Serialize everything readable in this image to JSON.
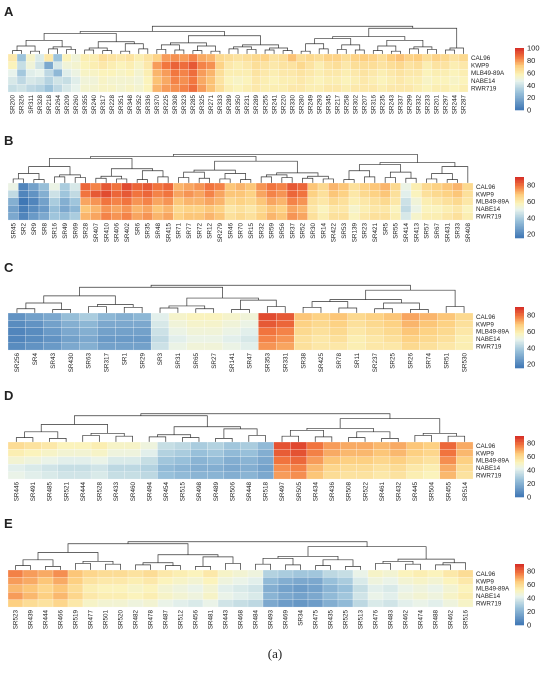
{
  "caption": "(a)",
  "palette": {
    "low": "#3b73b3",
    "mid": "#fbf7c5",
    "mid2": "#fde59a",
    "high": "#d73027",
    "midlow": "#e4f0f5"
  },
  "chart_data": [
    {
      "type": "heatmap",
      "panel": "A",
      "rows": [
        "CAL96",
        "KWP9",
        "MLB49-89A",
        "NABE14",
        "RWR719"
      ],
      "columns": [
        "SR200",
        "SR326",
        "SR311",
        "SR328",
        "SR218",
        "SR264",
        "SR209",
        "SR260",
        "SR355",
        "SR240",
        "SR317",
        "SR228",
        "SR351",
        "SR348",
        "SR352",
        "SR336",
        "SR370",
        "SR225",
        "SR308",
        "SR323",
        "SR285",
        "SR325",
        "SR271",
        "SR333",
        "SR289",
        "SR350",
        "SR231",
        "SR289",
        "SR255",
        "SR241",
        "SR220",
        "SR330",
        "SR280",
        "SR249",
        "SR293",
        "SR345",
        "SR217",
        "SR258",
        "SR302",
        "SR207",
        "SR316",
        "SR235",
        "SR243",
        "SR337",
        "SR299",
        "SR332",
        "SR233",
        "SR201",
        "SR297",
        "SR244",
        "SR287"
      ],
      "values": [
        [
          62,
          30,
          55,
          45,
          62,
          30,
          58,
          52,
          60,
          60,
          66,
          64,
          62,
          64,
          60,
          64,
          70,
          80,
          82,
          80,
          84,
          78,
          76,
          68,
          66,
          64,
          66,
          68,
          70,
          64,
          66,
          74,
          66,
          68,
          66,
          70,
          70,
          66,
          70,
          72,
          70,
          66,
          72,
          74,
          70,
          72,
          66,
          70,
          68,
          64,
          68
        ],
        [
          58,
          40,
          52,
          42,
          20,
          44,
          52,
          54,
          58,
          60,
          62,
          60,
          58,
          60,
          56,
          62,
          80,
          86,
          90,
          88,
          92,
          84,
          82,
          70,
          62,
          60,
          62,
          66,
          64,
          62,
          64,
          64,
          68,
          64,
          60,
          64,
          66,
          62,
          66,
          66,
          66,
          64,
          66,
          68,
          64,
          66,
          60,
          64,
          64,
          60,
          62
        ],
        [
          48,
          32,
          46,
          48,
          38,
          26,
          46,
          50,
          56,
          56,
          58,
          58,
          56,
          58,
          54,
          60,
          76,
          80,
          86,
          84,
          88,
          80,
          76,
          66,
          60,
          60,
          60,
          64,
          62,
          60,
          62,
          62,
          64,
          62,
          60,
          62,
          62,
          60,
          62,
          64,
          62,
          60,
          62,
          64,
          62,
          62,
          58,
          60,
          60,
          58,
          60
        ],
        [
          44,
          38,
          44,
          42,
          36,
          42,
          40,
          46,
          52,
          52,
          56,
          54,
          54,
          54,
          52,
          58,
          74,
          78,
          84,
          82,
          86,
          78,
          74,
          64,
          58,
          56,
          58,
          62,
          60,
          58,
          60,
          60,
          62,
          60,
          58,
          60,
          60,
          58,
          60,
          62,
          60,
          58,
          60,
          62,
          60,
          60,
          56,
          58,
          58,
          56,
          58
        ],
        [
          40,
          42,
          38,
          36,
          30,
          38,
          44,
          48,
          54,
          54,
          56,
          56,
          54,
          56,
          54,
          58,
          76,
          80,
          82,
          84,
          88,
          80,
          74,
          66,
          60,
          58,
          60,
          62,
          60,
          60,
          60,
          62,
          62,
          60,
          60,
          62,
          62,
          60,
          62,
          62,
          62,
          60,
          62,
          62,
          62,
          60,
          58,
          60,
          60,
          58,
          60
        ]
      ],
      "colorbar_ticks": [
        0,
        20,
        40,
        60,
        80,
        100
      ],
      "zlim": [
        0,
        100
      ]
    },
    {
      "type": "heatmap",
      "panel": "B",
      "rows": [
        "CAL96",
        "KWP9",
        "MLB49-89A",
        "NABE14",
        "RWR719"
      ],
      "columns": [
        "SR45",
        "SR2",
        "SR9",
        "SR8",
        "SR16",
        "SR49",
        "SR69",
        "SR28",
        "SR407",
        "SR410",
        "SR406",
        "SR402",
        "SR6",
        "SR35",
        "SR48",
        "SR415",
        "SR71",
        "SR77",
        "SR72",
        "SR12",
        "SR279",
        "SR46",
        "SR70",
        "SR15",
        "SR32",
        "SR59",
        "SR56",
        "SR37",
        "SR52",
        "SR30",
        "SR14",
        "SR422",
        "SR53",
        "SR139",
        "SR23",
        "SR421",
        "SR5",
        "SR55",
        "SR414",
        "SR413",
        "SR57",
        "SR67",
        "SR431",
        "SR33",
        "SR408"
      ],
      "values": [
        [
          52,
          20,
          28,
          36,
          52,
          40,
          48,
          82,
          78,
          84,
          80,
          86,
          82,
          84,
          80,
          82,
          72,
          74,
          76,
          80,
          78,
          70,
          72,
          70,
          76,
          80,
          78,
          84,
          82,
          70,
          66,
          72,
          70,
          64,
          68,
          70,
          72,
          66,
          52,
          60,
          66,
          68,
          70,
          72,
          66
        ],
        [
          44,
          20,
          24,
          32,
          46,
          38,
          44,
          80,
          84,
          86,
          82,
          84,
          80,
          82,
          78,
          80,
          74,
          76,
          74,
          78,
          74,
          70,
          70,
          68,
          74,
          78,
          76,
          82,
          80,
          68,
          64,
          70,
          68,
          62,
          66,
          68,
          70,
          64,
          50,
          58,
          64,
          66,
          68,
          70,
          64
        ],
        [
          32,
          16,
          20,
          28,
          40,
          32,
          38,
          74,
          76,
          80,
          78,
          80,
          76,
          78,
          74,
          76,
          70,
          72,
          72,
          74,
          72,
          66,
          68,
          66,
          70,
          74,
          72,
          78,
          76,
          64,
          62,
          66,
          64,
          60,
          62,
          64,
          66,
          62,
          46,
          54,
          60,
          62,
          64,
          66,
          62
        ],
        [
          28,
          18,
          22,
          26,
          36,
          30,
          34,
          70,
          72,
          76,
          74,
          76,
          72,
          74,
          70,
          72,
          66,
          68,
          68,
          70,
          68,
          62,
          64,
          62,
          66,
          70,
          68,
          74,
          72,
          62,
          58,
          62,
          62,
          56,
          60,
          62,
          62,
          58,
          44,
          52,
          58,
          58,
          60,
          62,
          58
        ],
        [
          30,
          20,
          26,
          30,
          38,
          36,
          40,
          72,
          74,
          78,
          76,
          78,
          74,
          76,
          72,
          74,
          68,
          70,
          70,
          72,
          70,
          64,
          66,
          64,
          68,
          72,
          70,
          76,
          74,
          64,
          60,
          64,
          64,
          58,
          62,
          64,
          64,
          60,
          48,
          56,
          60,
          60,
          62,
          64,
          60
        ]
      ],
      "colorbar_ticks": [
        20,
        40,
        60,
        80
      ],
      "zlim": [
        15,
        90
      ]
    },
    {
      "type": "heatmap",
      "panel": "C",
      "rows": [
        "CAL96",
        "KWP9",
        "MLB49-89A",
        "NABE14",
        "RWR719"
      ],
      "columns": [
        "SR256",
        "SR4",
        "SR43",
        "SR430",
        "SR63",
        "SR317",
        "SR1",
        "SR29",
        "SR3",
        "SR31",
        "SR65",
        "SR27",
        "SR141",
        "SR47",
        "SR353",
        "SR331",
        "SR38",
        "SR425",
        "SR78",
        "SR11",
        "SR237",
        "SR25",
        "SR26",
        "SR74",
        "SR51",
        "SR530"
      ],
      "values": [
        [
          24,
          28,
          30,
          36,
          40,
          34,
          32,
          34,
          50,
          56,
          58,
          58,
          56,
          54,
          86,
          84,
          70,
          68,
          70,
          66,
          68,
          70,
          74,
          72,
          70,
          66
        ],
        [
          22,
          24,
          28,
          32,
          34,
          30,
          30,
          30,
          48,
          54,
          56,
          56,
          54,
          52,
          84,
          82,
          68,
          66,
          68,
          64,
          66,
          68,
          72,
          70,
          68,
          64
        ],
        [
          20,
          22,
          26,
          30,
          32,
          28,
          28,
          28,
          46,
          52,
          54,
          54,
          52,
          50,
          80,
          78,
          66,
          64,
          66,
          62,
          64,
          66,
          70,
          68,
          66,
          62
        ],
        [
          20,
          22,
          24,
          28,
          30,
          26,
          26,
          26,
          44,
          50,
          52,
          52,
          50,
          48,
          78,
          76,
          64,
          62,
          64,
          60,
          62,
          64,
          68,
          66,
          64,
          60
        ],
        [
          22,
          24,
          26,
          30,
          32,
          28,
          28,
          28,
          46,
          52,
          54,
          54,
          52,
          50,
          76,
          74,
          64,
          62,
          62,
          60,
          62,
          62,
          66,
          64,
          62,
          60
        ]
      ],
      "colorbar_ticks": [
        20,
        40,
        60,
        80
      ],
      "zlim": [
        15,
        90
      ]
    },
    {
      "type": "heatmap",
      "panel": "D",
      "rows": [
        "CAL96",
        "KWP9",
        "MLB49-89A",
        "NABE14",
        "RWR719"
      ],
      "columns": [
        "SR446",
        "SR491",
        "SR485",
        "SR521",
        "SR444",
        "SR528",
        "SR433",
        "SR460",
        "SR494",
        "SR454",
        "SR515",
        "SR498",
        "SR489",
        "SR506",
        "SR448",
        "SR518",
        "SR497",
        "SR505",
        "SR434",
        "SR436",
        "SR508",
        "SR522",
        "SR461",
        "SR432",
        "SR445",
        "SR504",
        "SR455",
        "SR514"
      ],
      "values": [
        [
          60,
          58,
          56,
          52,
          52,
          54,
          50,
          50,
          46,
          36,
          34,
          30,
          32,
          28,
          30,
          24,
          84,
          86,
          78,
          72,
          70,
          70,
          68,
          70,
          66,
          64,
          80,
          70
        ],
        [
          54,
          52,
          50,
          48,
          48,
          50,
          46,
          46,
          42,
          32,
          30,
          26,
          28,
          24,
          26,
          20,
          82,
          84,
          76,
          70,
          68,
          68,
          66,
          68,
          64,
          62,
          78,
          68
        ],
        [
          48,
          46,
          44,
          42,
          42,
          44,
          40,
          40,
          36,
          28,
          26,
          22,
          24,
          20,
          22,
          18,
          78,
          80,
          72,
          66,
          64,
          64,
          62,
          64,
          60,
          58,
          74,
          64
        ],
        [
          42,
          40,
          38,
          36,
          36,
          38,
          34,
          34,
          32,
          24,
          22,
          20,
          20,
          18,
          20,
          16,
          74,
          76,
          68,
          62,
          60,
          60,
          58,
          60,
          56,
          54,
          70,
          60
        ],
        [
          44,
          42,
          40,
          38,
          38,
          40,
          36,
          36,
          34,
          26,
          24,
          22,
          22,
          20,
          22,
          18,
          72,
          74,
          66,
          60,
          58,
          58,
          56,
          58,
          54,
          52,
          68,
          58
        ]
      ],
      "colorbar_ticks": [
        0,
        20,
        40,
        60,
        80
      ],
      "zlim": [
        0,
        90
      ]
    },
    {
      "type": "heatmap",
      "panel": "E",
      "rows": [
        "CAL96",
        "KWP9",
        "MLB49-89A",
        "NABE14",
        "RWR719"
      ],
      "columns": [
        "SR523",
        "SR439",
        "SR444",
        "SR466",
        "SR519",
        "SR477",
        "SR501",
        "SR520",
        "SR482",
        "SR478",
        "SR487",
        "SR512",
        "SR456",
        "SR481",
        "SR443",
        "SR468",
        "SR484",
        "SR493",
        "SR469",
        "SR34",
        "SR475",
        "SR435",
        "SR525",
        "SR513",
        "SR476",
        "SR483",
        "SR462",
        "SR474",
        "SR488",
        "SR462",
        "SR516"
      ],
      "values": [
        [
          76,
          72,
          70,
          74,
          66,
          62,
          60,
          60,
          58,
          60,
          56,
          54,
          52,
          56,
          50,
          48,
          46,
          32,
          30,
          28,
          28,
          34,
          36,
          44,
          50,
          48,
          52,
          54,
          52,
          56,
          60
        ],
        [
          72,
          70,
          66,
          70,
          64,
          58,
          56,
          56,
          54,
          56,
          52,
          50,
          48,
          52,
          46,
          44,
          42,
          24,
          20,
          18,
          18,
          26,
          30,
          40,
          46,
          44,
          48,
          50,
          48,
          52,
          56
        ],
        [
          68,
          66,
          62,
          66,
          60,
          54,
          52,
          52,
          50,
          52,
          48,
          46,
          44,
          48,
          42,
          40,
          38,
          20,
          16,
          14,
          16,
          22,
          26,
          36,
          42,
          40,
          44,
          46,
          44,
          48,
          52
        ],
        [
          72,
          68,
          64,
          68,
          62,
          56,
          54,
          54,
          52,
          54,
          50,
          48,
          46,
          50,
          44,
          42,
          40,
          22,
          18,
          16,
          18,
          24,
          28,
          38,
          44,
          42,
          46,
          48,
          46,
          50,
          54
        ],
        [
          64,
          60,
          58,
          62,
          56,
          50,
          48,
          48,
          46,
          48,
          44,
          42,
          40,
          44,
          38,
          36,
          34,
          18,
          14,
          12,
          14,
          20,
          24,
          34,
          40,
          38,
          42,
          44,
          42,
          46,
          50
        ]
      ],
      "colorbar_ticks": [
        0,
        20,
        40,
        60,
        80
      ],
      "zlim": [
        0,
        90
      ]
    }
  ]
}
